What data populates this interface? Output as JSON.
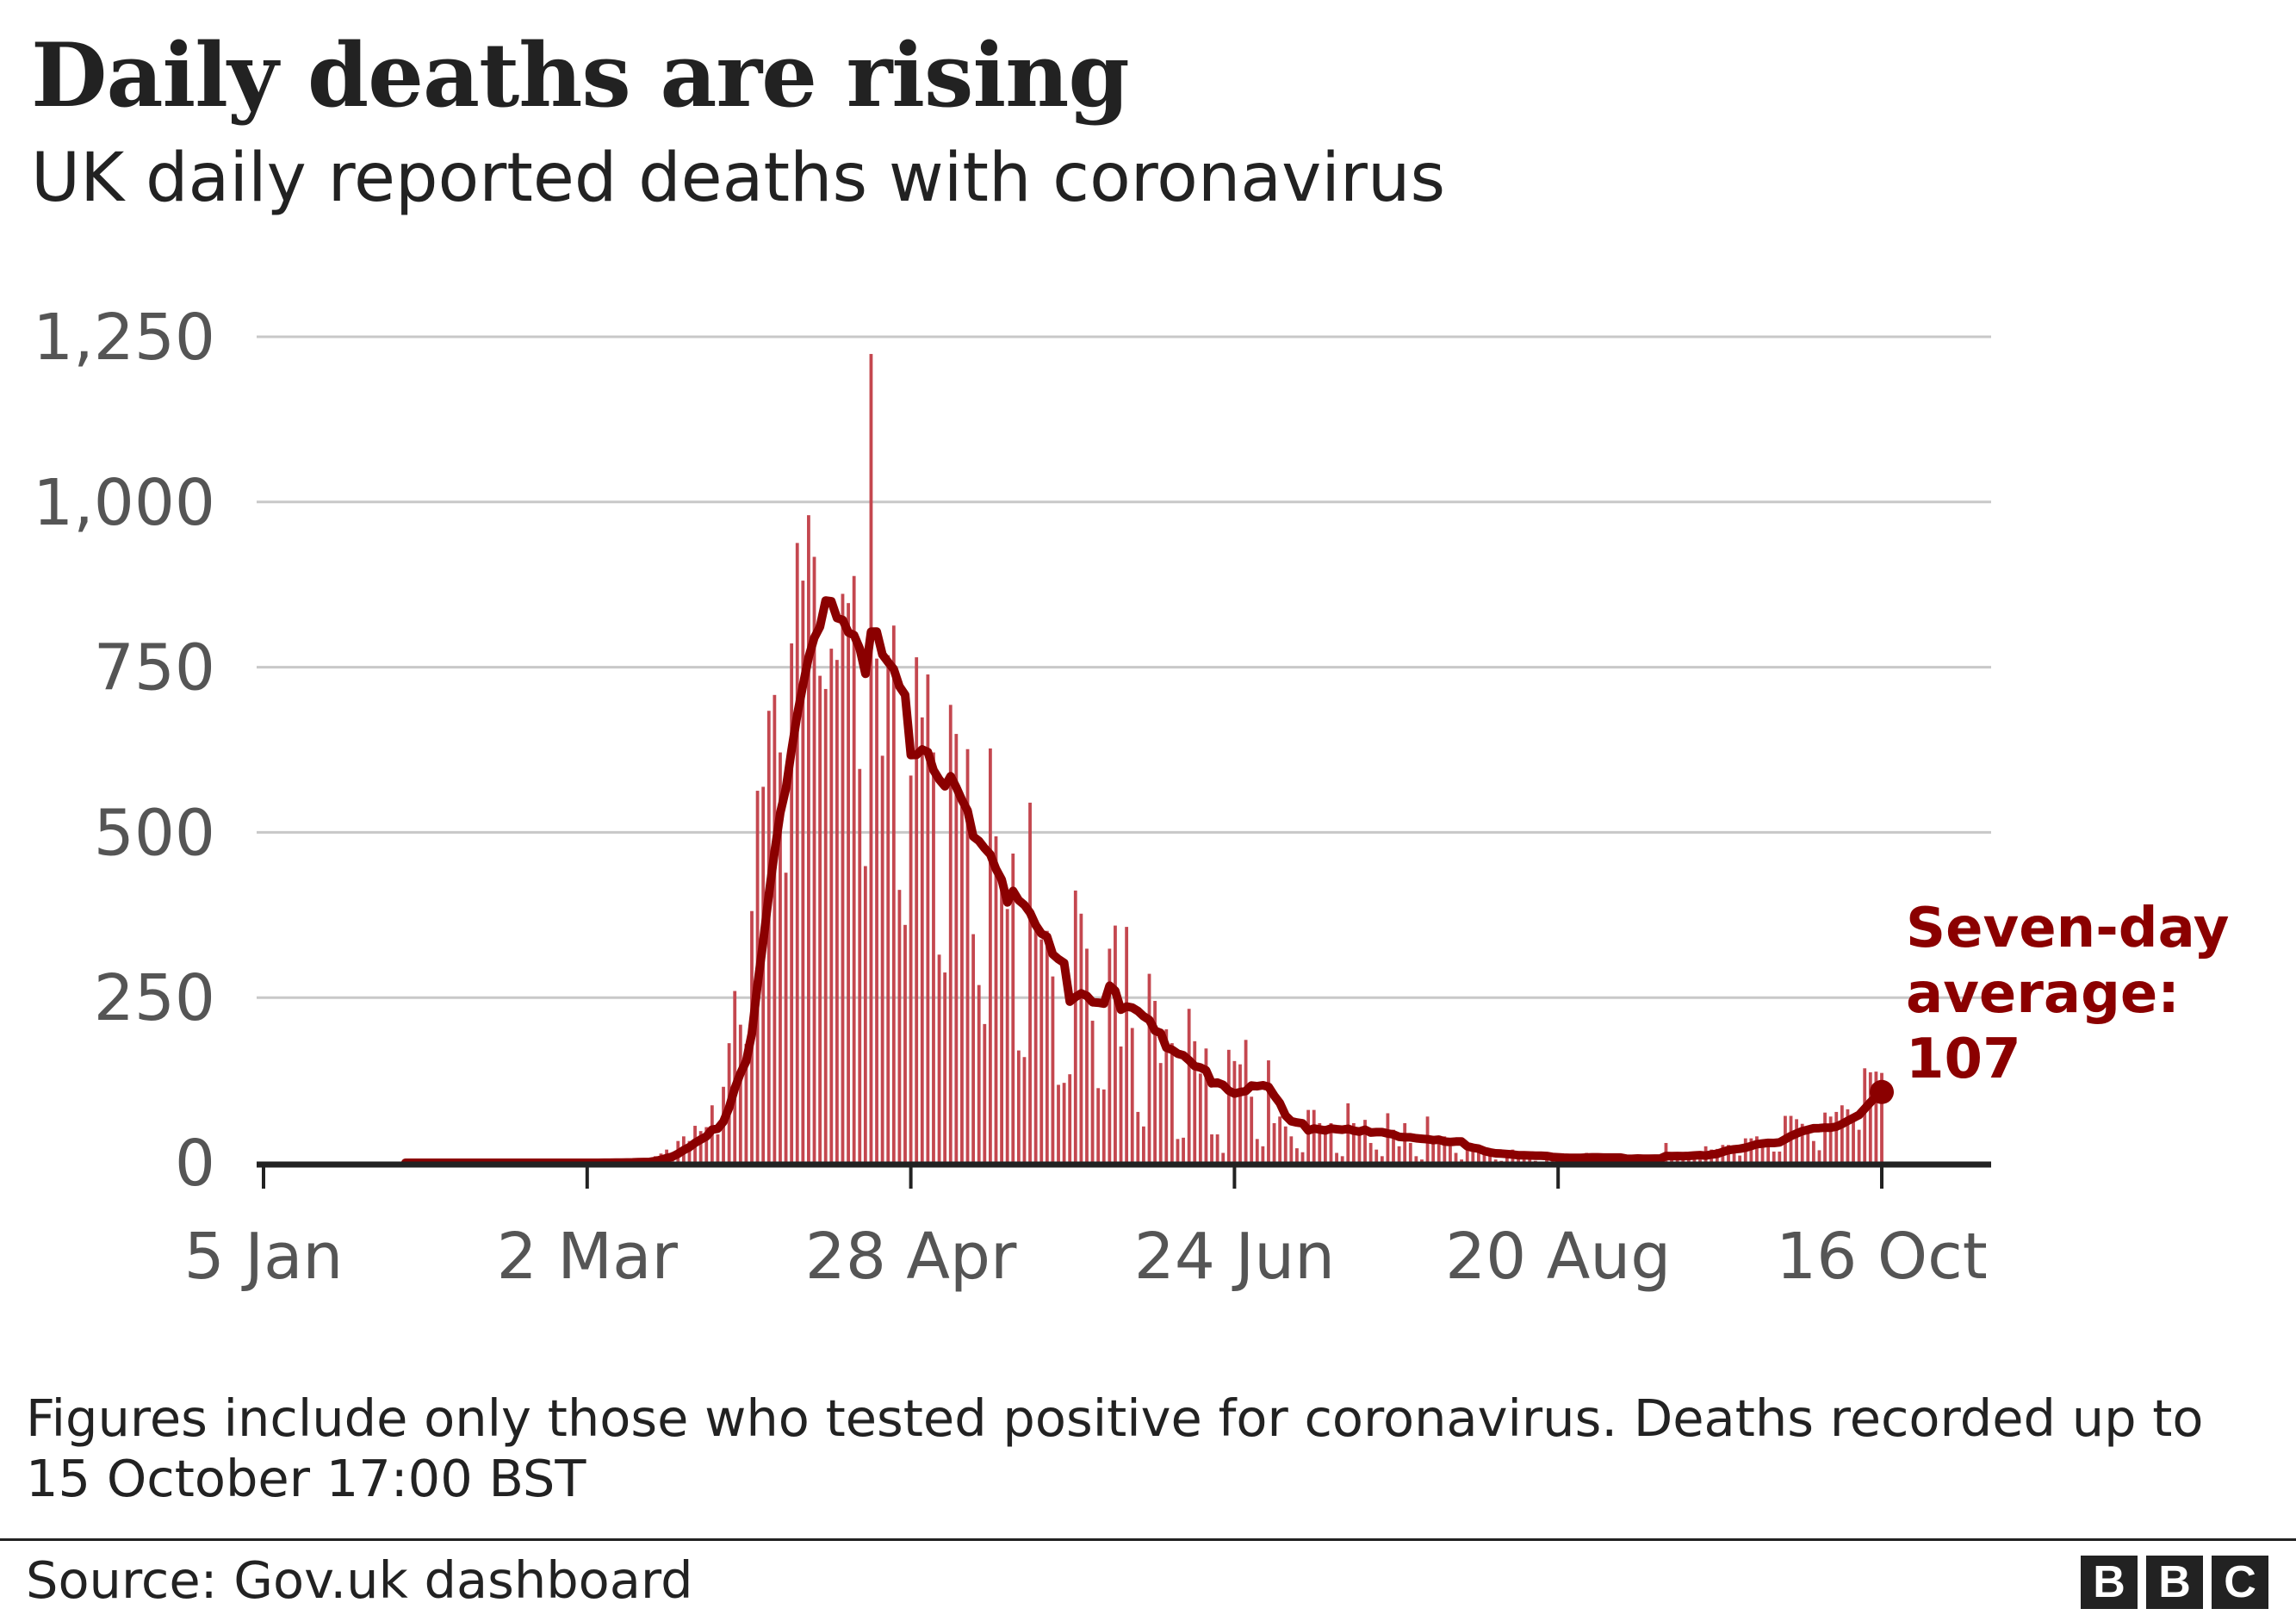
{
  "header": {
    "title": "Daily deaths are rising",
    "subtitle": "UK daily reported deaths with coronavirus"
  },
  "footer": {
    "note_line1": "Figures include only those who tested positive for coronavirus. Deaths recorded up to",
    "note_line2": "15 October 17:00 BST",
    "source": "Source: Gov.uk dashboard",
    "logo": [
      "B",
      "B",
      "C"
    ]
  },
  "annotation": {
    "line1": "Seven-day",
    "line2": "average:",
    "line3": "107"
  },
  "colors": {
    "bars": "#c4474f",
    "average_line": "#8b0000",
    "gridlines": "#c8c8c8",
    "axis": "#222222",
    "tick_labels": "#555555"
  },
  "chart_data": {
    "type": "bar",
    "title": "Daily deaths are rising",
    "subtitle": "UK daily reported deaths with coronavirus",
    "xlabel": "",
    "ylabel": "",
    "x_frequency": "daily",
    "xlim": [
      "5 Jan",
      "16 Oct"
    ],
    "ylim": [
      0,
      1250
    ],
    "grid": true,
    "y_ticks": [
      0,
      250,
      500,
      750,
      1000,
      1250
    ],
    "y_tick_labels": [
      "0",
      "250",
      "500",
      "750",
      "1,000",
      "1,250"
    ],
    "x_tick_labels": [
      "5 Jan",
      "2 Mar",
      "28 Apr",
      "24 Jun",
      "20 Aug",
      "16 Oct"
    ],
    "series": [
      {
        "type": "bar",
        "values": [
          0,
          0,
          0,
          0,
          0,
          0,
          0,
          0,
          0,
          0,
          0,
          0,
          0,
          0,
          0,
          0,
          0,
          0,
          0,
          0,
          0,
          0,
          0,
          0,
          0,
          0,
          0,
          0,
          0,
          0,
          0,
          0,
          0,
          0,
          0,
          0,
          0,
          0,
          0,
          0,
          0,
          0,
          0,
          0,
          0,
          0,
          0,
          0,
          0,
          0,
          0,
          0,
          0,
          0,
          0,
          0,
          0,
          0,
          0,
          0,
          1,
          0,
          1,
          0,
          2,
          1,
          2,
          2,
          1,
          10,
          14,
          20,
          16,
          33,
          40,
          33,
          56,
          48,
          54,
          87,
          43,
          115,
          181,
          260,
          209,
          180,
          381,
          563,
          569,
          684,
          708,
          621,
          439,
          786,
          938,
          881,
          980,
          917,
          737,
          717,
          778,
          761,
          861,
          847,
          888,
          596,
          449,
          1224,
          763,
          616,
          768,
          813,
          413,
          360,
          586,
          765,
          674,
          739,
          621,
          315,
          288,
          693,
          649,
          539,
          626,
          346,
          269,
          210,
          627,
          494,
          428,
          384,
          468,
          170,
          160,
          545,
          363,
          338,
          351,
          282,
          118,
          121,
          134,
          412,
          377,
          324,
          215,
          113,
          111,
          324,
          359,
          176,
          357,
          204,
          77,
          55,
          286,
          245,
          151,
          202,
          181,
          36,
          38,
          233,
          184,
          135,
          173,
          43,
          43,
          15,
          171,
          154,
          149,
          186,
          100,
          36,
          25,
          155,
          60,
          70,
          55,
          40,
          22,
          16,
          80,
          80,
          60,
          45,
          60,
          15,
          10,
          90,
          60,
          50,
          65,
          30,
          20,
          10,
          75,
          50,
          25,
          60,
          30,
          10,
          5,
          70,
          40,
          30,
          40,
          25,
          15,
          5,
          20,
          25,
          20,
          15,
          10,
          5,
          3,
          15,
          20,
          12,
          15,
          8,
          3,
          2,
          12,
          10,
          8,
          12,
          6,
          3,
          2,
          15,
          12,
          8,
          10,
          6,
          3,
          2,
          3,
          10,
          12,
          8,
          6,
          4,
          2,
          30,
          8,
          14,
          6,
          9,
          9,
          5,
          25,
          20,
          21,
          27,
          27,
          18,
          11,
          37,
          37,
          40,
          34,
          34,
          17,
          17,
          71,
          71,
          66,
          59,
          49,
          33,
          19,
          76,
          70,
          77,
          87,
          81,
          65,
          50,
          143,
          137,
          138,
          136
        ]
      },
      {
        "type": "line",
        "name": "Seven-day average",
        "method": "seven-day rolling mean of daily values",
        "last_value": 107
      }
    ],
    "annotations": [
      "Seven-day average: 107"
    ]
  }
}
